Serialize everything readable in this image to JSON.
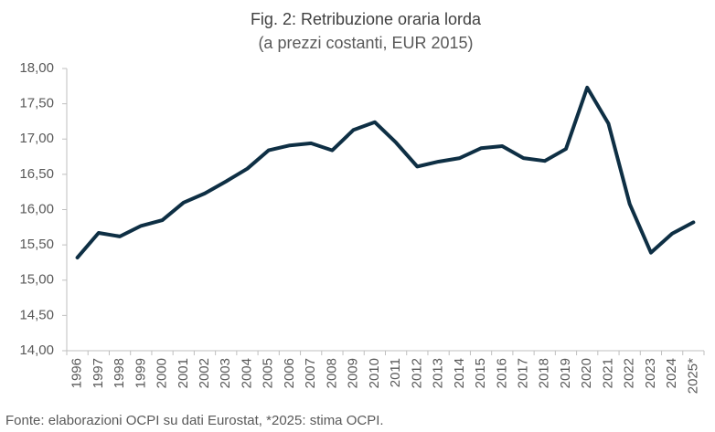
{
  "chart_data": {
    "type": "line",
    "title": "Fig. 2: Retribuzione oraria lorda",
    "subtitle": "(a prezzi costanti, EUR 2015)",
    "source": "Fonte: elaborazioni OCPI su dati Eurostat, *2025: stima OCPI.",
    "categories": [
      "1996",
      "1997",
      "1998",
      "1999",
      "2000",
      "2001",
      "2002",
      "2003",
      "2004",
      "2005",
      "2006",
      "2007",
      "2008",
      "2009",
      "2010",
      "2011",
      "2012",
      "2013",
      "2014",
      "2015",
      "2016",
      "2017",
      "2018",
      "2019",
      "2020",
      "2021",
      "2022",
      "2023",
      "2024",
      "2025*"
    ],
    "values": [
      15.32,
      15.67,
      15.62,
      15.77,
      15.85,
      16.1,
      16.23,
      16.4,
      16.58,
      16.84,
      16.91,
      16.94,
      16.84,
      17.13,
      17.24,
      16.95,
      16.61,
      16.68,
      16.73,
      16.87,
      16.9,
      16.73,
      16.69,
      16.86,
      17.73,
      17.22,
      16.08,
      15.39,
      15.66,
      15.82
    ],
    "color": "#0e2f44",
    "ylim": [
      14,
      18
    ],
    "yticks": [
      {
        "value": 14,
        "label": "14,00"
      },
      {
        "value": 14.5,
        "label": "14,50"
      },
      {
        "value": 15,
        "label": "15,00"
      },
      {
        "value": 15.5,
        "label": "15,50"
      },
      {
        "value": 16,
        "label": "16,00"
      },
      {
        "value": 16.5,
        "label": "16,50"
      },
      {
        "value": 17,
        "label": "17,00"
      },
      {
        "value": 17.5,
        "label": "17,50"
      },
      {
        "value": 18,
        "label": "18,00"
      }
    ],
    "grid": false
  }
}
